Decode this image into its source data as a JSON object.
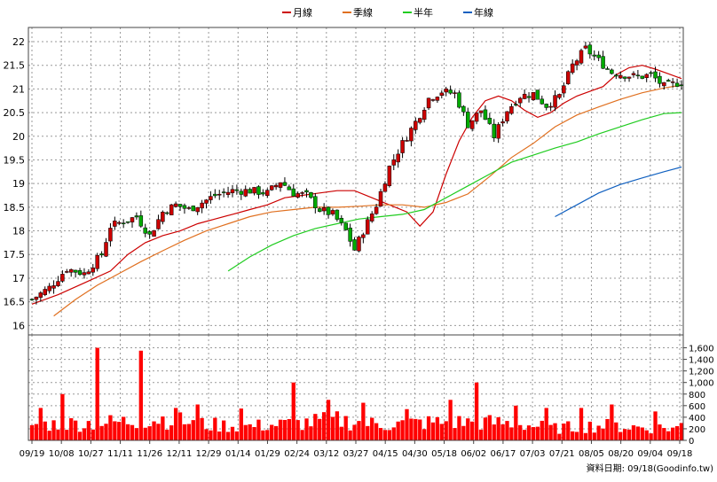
{
  "colors": {
    "month": "#cc0000",
    "season": "#e07020",
    "half": "#20cc20",
    "year": "#1060c0",
    "up": "#cc0000",
    "down": "#00aa00",
    "volume": "#ff0000",
    "grid": "#999999"
  },
  "legend": [
    {
      "name": "月線",
      "color": "#cc0000"
    },
    {
      "name": "季線",
      "color": "#e07020"
    },
    {
      "name": "半年",
      "color": "#20cc20"
    },
    {
      "name": "年線",
      "color": "#1060c0"
    }
  ],
  "footer": {
    "date_label": "資料日期: 09/18",
    "source": "(Goodinfo.tw)"
  },
  "chart_data": {
    "type": "candlestick-with-volume",
    "title": "",
    "price_axis": {
      "ylim": [
        15.8,
        22.3
      ],
      "ticks": [
        16,
        16.5,
        17,
        17.5,
        18,
        18.5,
        19,
        19.5,
        20,
        20.5,
        21,
        21.5,
        22
      ],
      "tick_labels": [
        "16",
        "16.5",
        "17",
        "17.5",
        "18",
        "18.5",
        "19",
        "19.5",
        "20",
        "20.5",
        "21",
        "21.5",
        "22"
      ],
      "side": "left"
    },
    "volume_axis": {
      "ylim": [
        0,
        1700
      ],
      "ticks": [
        0,
        200,
        400,
        600,
        800,
        1000,
        1200,
        1400,
        1600
      ],
      "tick_labels": [
        "0",
        "200",
        "400",
        "600",
        "800",
        "1,000",
        "1,200",
        "1,400",
        "1,600"
      ],
      "side": "right"
    },
    "x_tick_labels": [
      "09/19",
      "10/08",
      "10/27",
      "11/11",
      "11/26",
      "12/11",
      "12/29",
      "01/14",
      "01/29",
      "02/24",
      "03/12",
      "03/27",
      "04/15",
      "04/30",
      "05/18",
      "06/02",
      "06/17",
      "07/03",
      "07/21",
      "08/05",
      "08/20",
      "09/04",
      "09/18"
    ],
    "grid": true,
    "legend_position": "top-center",
    "ma_series": [
      {
        "name": "月線",
        "points": [
          [
            0,
            16.45
          ],
          [
            6,
            16.65
          ],
          [
            12,
            16.9
          ],
          [
            18,
            17.15
          ],
          [
            22,
            17.5
          ],
          [
            26,
            17.75
          ],
          [
            30,
            17.9
          ],
          [
            34,
            18.0
          ],
          [
            38,
            18.15
          ],
          [
            42,
            18.25
          ],
          [
            46,
            18.35
          ],
          [
            50,
            18.45
          ],
          [
            54,
            18.55
          ],
          [
            58,
            18.7
          ],
          [
            62,
            18.75
          ],
          [
            66,
            18.8
          ],
          [
            70,
            18.85
          ],
          [
            74,
            18.85
          ],
          [
            78,
            18.7
          ],
          [
            82,
            18.55
          ],
          [
            86,
            18.4
          ],
          [
            89,
            18.1
          ],
          [
            92,
            18.4
          ],
          [
            95,
            19.2
          ],
          [
            98,
            19.9
          ],
          [
            101,
            20.4
          ],
          [
            104,
            20.75
          ],
          [
            107,
            20.85
          ],
          [
            110,
            20.75
          ],
          [
            113,
            20.55
          ],
          [
            116,
            20.4
          ],
          [
            119,
            20.5
          ],
          [
            122,
            20.7
          ],
          [
            125,
            20.85
          ],
          [
            128,
            20.95
          ],
          [
            131,
            21.05
          ],
          [
            134,
            21.3
          ],
          [
            137,
            21.45
          ],
          [
            140,
            21.5
          ],
          [
            143,
            21.42
          ],
          [
            146,
            21.32
          ],
          [
            149,
            21.22
          ]
        ]
      },
      {
        "name": "季線",
        "points": [
          [
            5,
            16.2
          ],
          [
            10,
            16.55
          ],
          [
            15,
            16.85
          ],
          [
            20,
            17.1
          ],
          [
            25,
            17.35
          ],
          [
            30,
            17.58
          ],
          [
            35,
            17.8
          ],
          [
            40,
            18.0
          ],
          [
            45,
            18.15
          ],
          [
            50,
            18.3
          ],
          [
            55,
            18.4
          ],
          [
            60,
            18.45
          ],
          [
            65,
            18.5
          ],
          [
            70,
            18.5
          ],
          [
            75,
            18.52
          ],
          [
            80,
            18.55
          ],
          [
            85,
            18.55
          ],
          [
            90,
            18.5
          ],
          [
            95,
            18.6
          ],
          [
            100,
            18.78
          ],
          [
            105,
            19.15
          ],
          [
            110,
            19.55
          ],
          [
            115,
            19.85
          ],
          [
            120,
            20.2
          ],
          [
            125,
            20.45
          ],
          [
            130,
            20.62
          ],
          [
            135,
            20.78
          ],
          [
            140,
            20.92
          ],
          [
            145,
            21.02
          ],
          [
            149,
            21.08
          ]
        ]
      },
      {
        "name": "半年",
        "points": [
          [
            45,
            17.15
          ],
          [
            50,
            17.45
          ],
          [
            55,
            17.7
          ],
          [
            60,
            17.9
          ],
          [
            65,
            18.05
          ],
          [
            70,
            18.15
          ],
          [
            75,
            18.25
          ],
          [
            80,
            18.3
          ],
          [
            85,
            18.35
          ],
          [
            90,
            18.45
          ],
          [
            95,
            18.7
          ],
          [
            100,
            18.95
          ],
          [
            105,
            19.2
          ],
          [
            110,
            19.45
          ],
          [
            115,
            19.6
          ],
          [
            120,
            19.75
          ],
          [
            125,
            19.88
          ],
          [
            130,
            20.05
          ],
          [
            135,
            20.2
          ],
          [
            140,
            20.35
          ],
          [
            145,
            20.48
          ],
          [
            149,
            20.5
          ]
        ]
      },
      {
        "name": "年線",
        "points": [
          [
            120,
            18.3
          ],
          [
            125,
            18.55
          ],
          [
            130,
            18.8
          ],
          [
            135,
            18.98
          ],
          [
            140,
            19.12
          ],
          [
            145,
            19.25
          ],
          [
            149,
            19.35
          ]
        ]
      }
    ],
    "anchors": [
      [
        0,
        16.55
      ],
      [
        4,
        16.8
      ],
      [
        8,
        17.2
      ],
      [
        12,
        17.1
      ],
      [
        16,
        17.5
      ],
      [
        18,
        18.1
      ],
      [
        21,
        18.2
      ],
      [
        24,
        18.3
      ],
      [
        27,
        17.9
      ],
      [
        30,
        18.4
      ],
      [
        33,
        18.55
      ],
      [
        36,
        18.45
      ],
      [
        39,
        18.6
      ],
      [
        42,
        18.75
      ],
      [
        46,
        18.85
      ],
      [
        50,
        18.85
      ],
      [
        54,
        18.8
      ],
      [
        57,
        19.05
      ],
      [
        60,
        18.8
      ],
      [
        63,
        18.75
      ],
      [
        66,
        18.45
      ],
      [
        69,
        18.35
      ],
      [
        72,
        18.0
      ],
      [
        74,
        17.6
      ],
      [
        76,
        18.0
      ],
      [
        79,
        18.55
      ],
      [
        82,
        19.35
      ],
      [
        85,
        19.85
      ],
      [
        88,
        20.3
      ],
      [
        91,
        20.8
      ],
      [
        94,
        20.95
      ],
      [
        97,
        20.9
      ],
      [
        100,
        20.25
      ],
      [
        103,
        20.55
      ],
      [
        106,
        20.0
      ],
      [
        109,
        20.55
      ],
      [
        112,
        20.85
      ],
      [
        115,
        20.9
      ],
      [
        118,
        20.65
      ],
      [
        121,
        20.85
      ],
      [
        124,
        21.5
      ],
      [
        127,
        21.85
      ],
      [
        130,
        21.6
      ],
      [
        133,
        21.35
      ],
      [
        136,
        21.3
      ],
      [
        139,
        21.25
      ],
      [
        142,
        21.3
      ],
      [
        145,
        21.05
      ],
      [
        149,
        21.15
      ]
    ],
    "volume_levels": [
      [
        0,
        300
      ],
      [
        20,
        350
      ],
      [
        30,
        420
      ],
      [
        40,
        300
      ],
      [
        50,
        270
      ],
      [
        60,
        320
      ],
      [
        70,
        390
      ],
      [
        80,
        300
      ],
      [
        90,
        340
      ],
      [
        100,
        350
      ],
      [
        110,
        330
      ],
      [
        120,
        230
      ],
      [
        130,
        290
      ],
      [
        140,
        250
      ],
      [
        149,
        230
      ]
    ],
    "volume_spikes": [
      [
        2,
        560
      ],
      [
        7,
        800
      ],
      [
        15,
        1600
      ],
      [
        25,
        1550
      ],
      [
        33,
        560
      ],
      [
        38,
        620
      ],
      [
        48,
        550
      ],
      [
        60,
        1000
      ],
      [
        68,
        700
      ],
      [
        76,
        650
      ],
      [
        86,
        540
      ],
      [
        96,
        700
      ],
      [
        102,
        1000
      ],
      [
        111,
        600
      ],
      [
        118,
        560
      ],
      [
        126,
        560
      ],
      [
        133,
        620
      ],
      [
        143,
        500
      ]
    ],
    "volume_last": 300
  }
}
